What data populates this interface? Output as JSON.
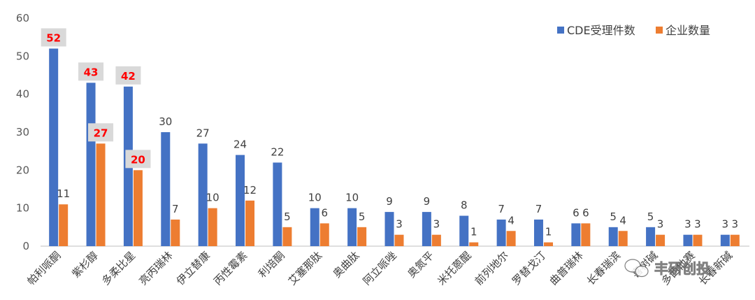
{
  "chart_data": {
    "type": "bar",
    "title": "",
    "xlabel": "",
    "ylabel": "",
    "ylim": [
      0,
      60
    ],
    "yticks": [
      0,
      10,
      20,
      30,
      40,
      50,
      60
    ],
    "grid": false,
    "legend_position": "top-right",
    "categories": [
      "帕利哌酮",
      "紫杉醇",
      "多柔比星",
      "亮丙瑞林",
      "伊立替康",
      "丙性霉素",
      "利培酮",
      "艾塞那肽",
      "奥曲肽",
      "阿立哌唑",
      "奥氮平",
      "米托蒽醌",
      "前列地尔",
      "罗替戈汀",
      "曲普瑞林",
      "长春瑞滨",
      "喜树碱",
      "多西他赛",
      "长春新碱"
    ],
    "series": [
      {
        "name": "CDE受理件数",
        "color": "#4472c4",
        "values": [
          52,
          43,
          42,
          30,
          27,
          24,
          22,
          10,
          10,
          9,
          9,
          8,
          7,
          7,
          6,
          5,
          5,
          3,
          3
        ]
      },
      {
        "name": "企业数量",
        "color": "#ed7d31",
        "values": [
          11,
          27,
          20,
          7,
          10,
          12,
          5,
          6,
          5,
          3,
          3,
          1,
          4,
          1,
          6,
          4,
          3,
          3,
          3
        ]
      }
    ],
    "highlighted_labels": [
      {
        "series": 0,
        "index": 0
      },
      {
        "series": 0,
        "index": 1
      },
      {
        "series": 0,
        "index": 2
      },
      {
        "series": 1,
        "index": 1
      },
      {
        "series": 1,
        "index": 2
      }
    ],
    "highlight_text_color": "#ff0000",
    "highlight_box_color": "#d9d9d9"
  },
  "watermark": {
    "text": "丰研创投",
    "icon": "wechat-icon"
  }
}
